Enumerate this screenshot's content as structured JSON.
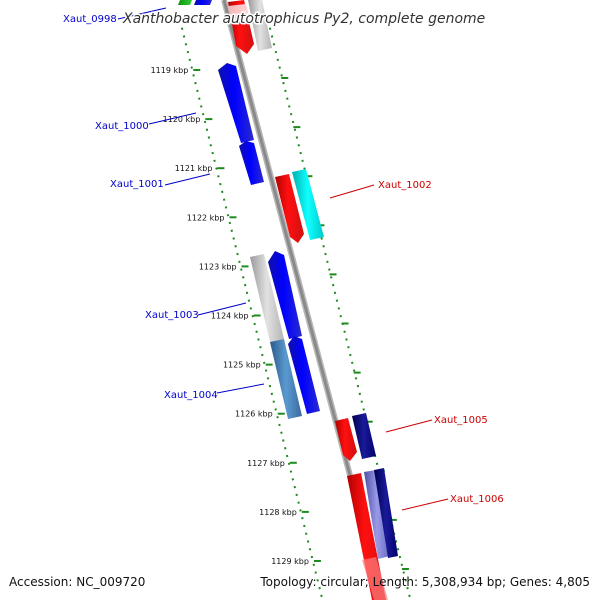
{
  "title": "Xanthobacter autotrophicus Py2, complete genome",
  "accession": "Accession: NC_009720",
  "summary": "Topology: circular; Length: 5,308,934 bp; Genes: 4,805",
  "colors": {
    "backbone": "#8a8a8a",
    "tick_dots": "#1f8a1f",
    "forward_label": "#0000cc",
    "reverse_label": "#cc0000"
  },
  "ticks": [
    {
      "label": "1119 kbp"
    },
    {
      "label": "1120 kbp"
    },
    {
      "label": "1121 kbp"
    },
    {
      "label": "1122 kbp"
    },
    {
      "label": "1123 kbp"
    },
    {
      "label": "1124 kbp"
    },
    {
      "label": "1125 kbp"
    },
    {
      "label": "1126 kbp"
    },
    {
      "label": "1127 kbp"
    },
    {
      "label": "1128 kbp"
    },
    {
      "label": "1129 kbp"
    }
  ],
  "gene_labels": [
    {
      "text": "Xaut_0998",
      "strand": "forward"
    },
    {
      "text": "Xaut_1000",
      "strand": "forward"
    },
    {
      "text": "Xaut_1001",
      "strand": "forward"
    },
    {
      "text": "Xaut_1002",
      "strand": "reverse"
    },
    {
      "text": "Xaut_1003",
      "strand": "forward"
    },
    {
      "text": "Xaut_1004",
      "strand": "forward"
    },
    {
      "text": "Xaut_1005",
      "strand": "reverse"
    },
    {
      "text": "Xaut_1006",
      "strand": "reverse"
    }
  ]
}
